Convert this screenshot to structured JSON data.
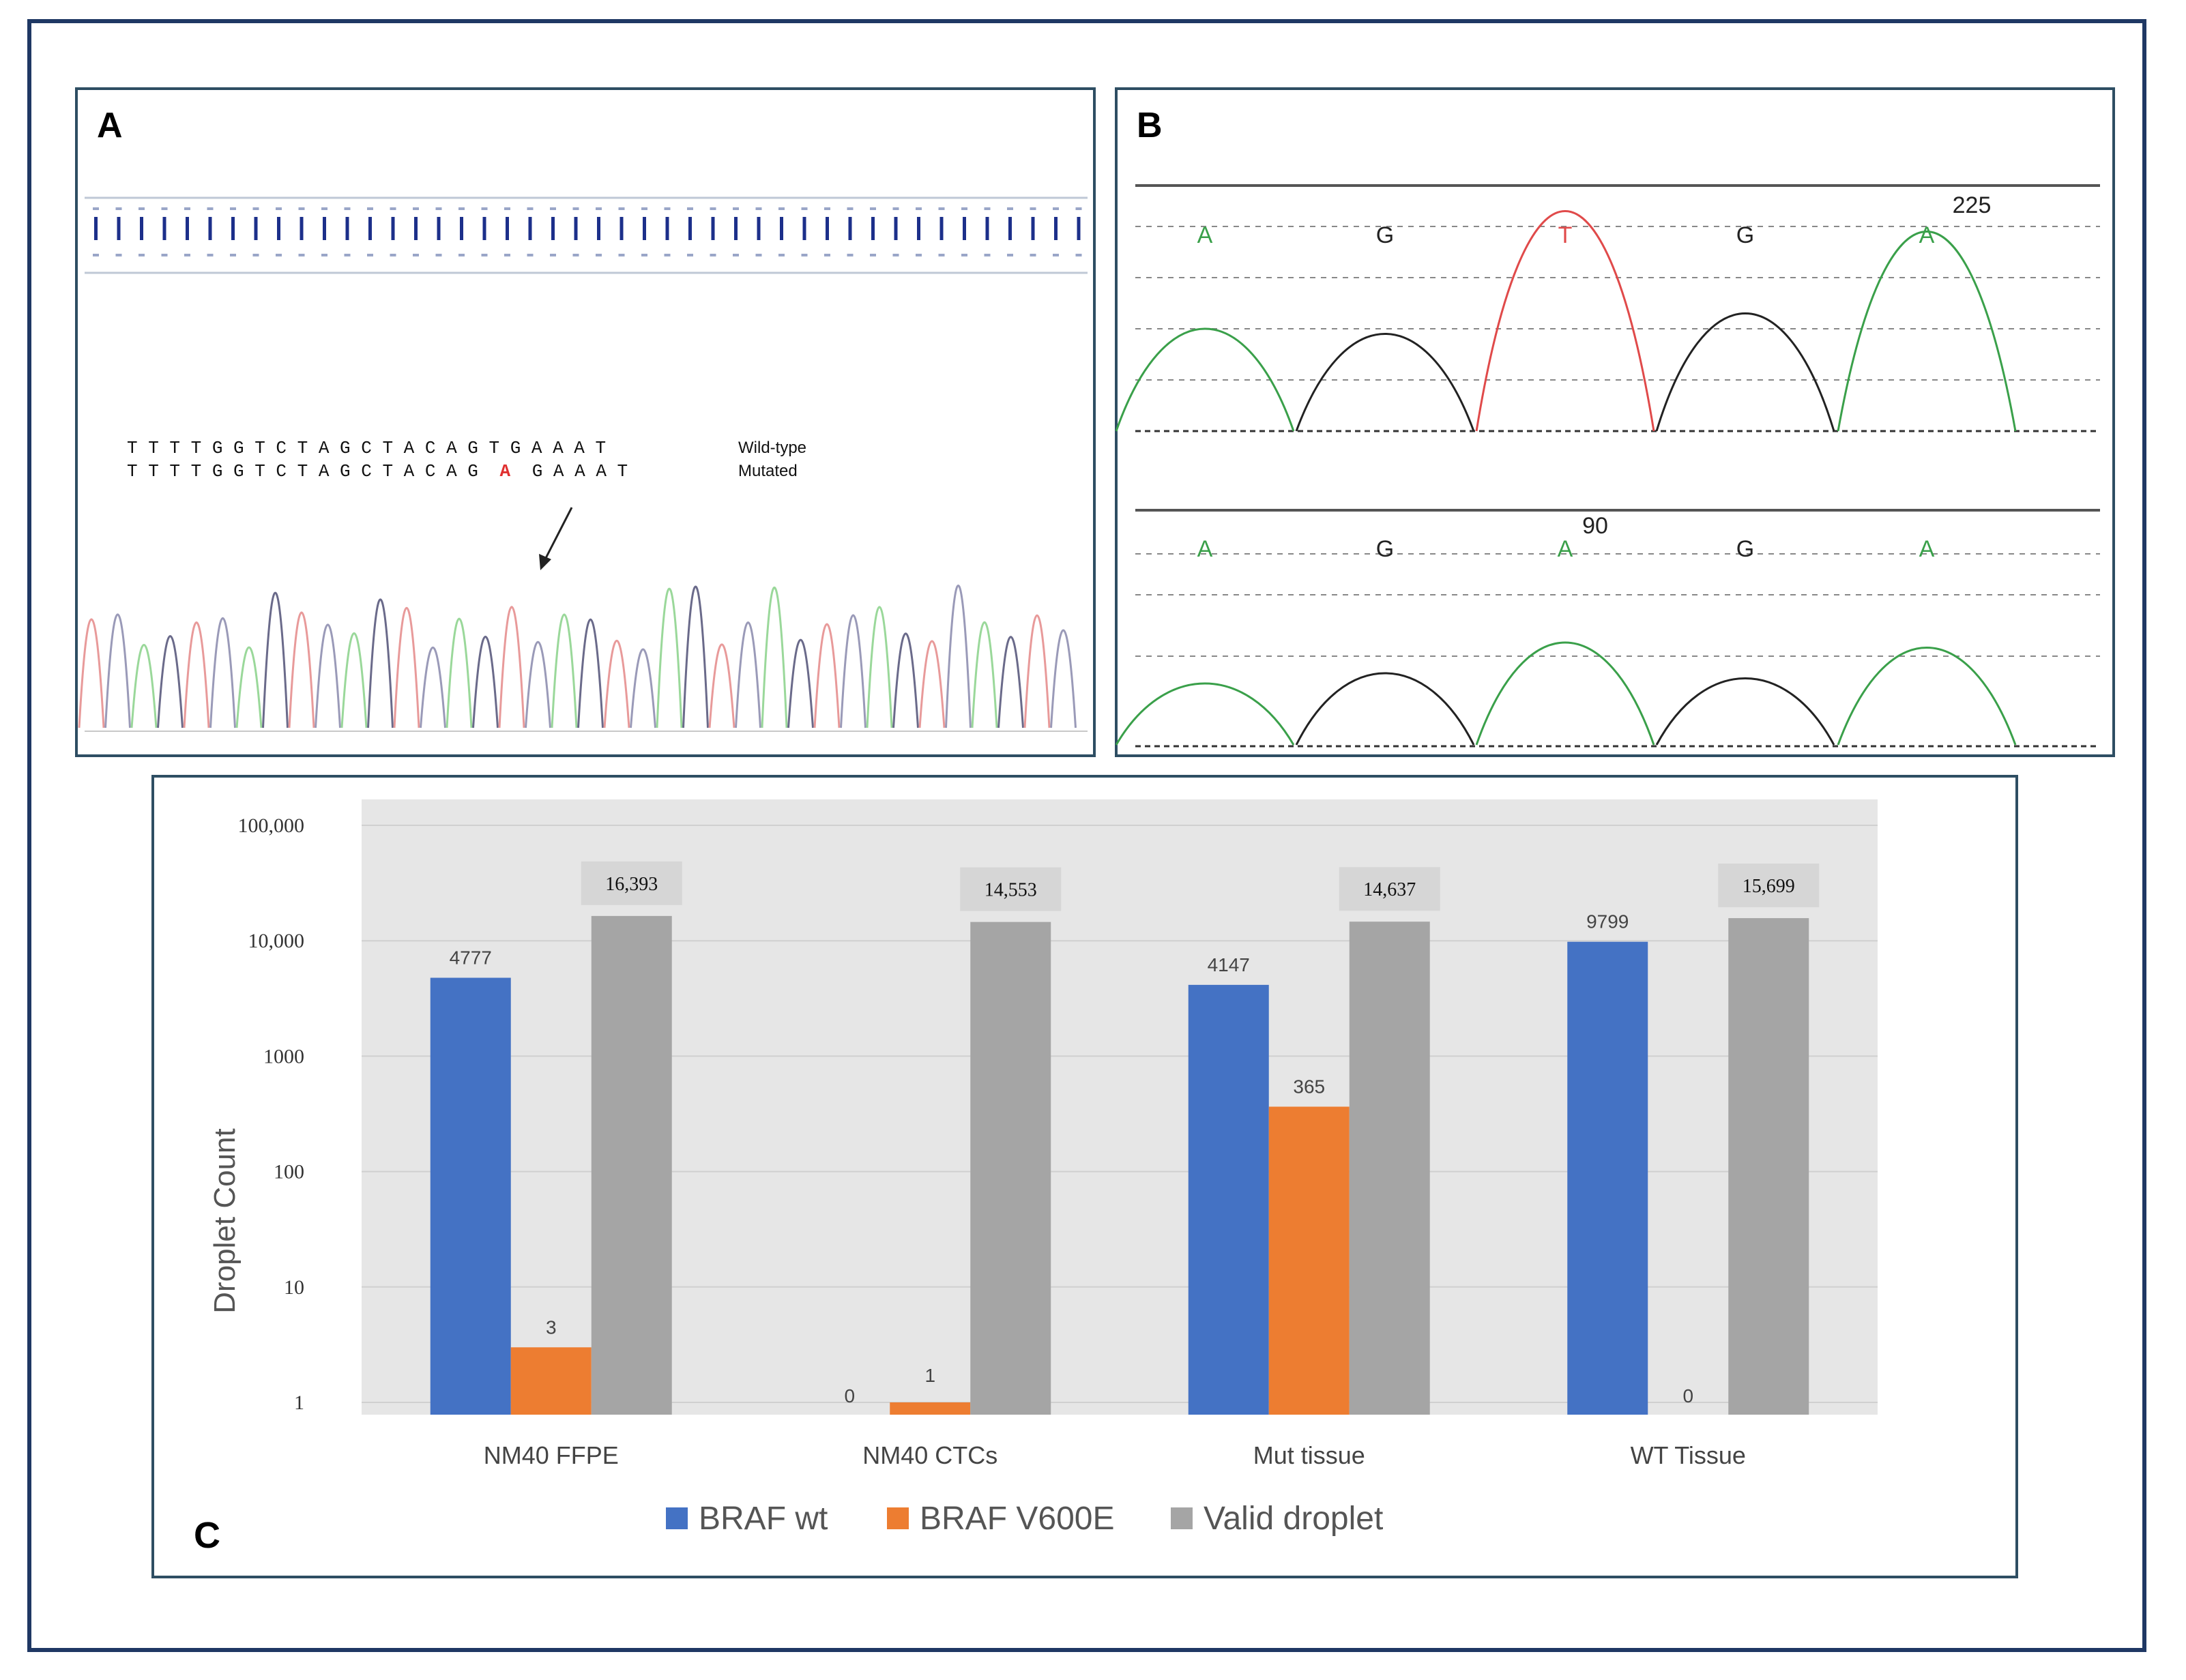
{
  "panels": {
    "a_letter": "A",
    "b_letter": "B",
    "c_letter": "C"
  },
  "panel_a": {
    "wild_type_seq": "T T T T G G T C T A G C T A C A G T G A A A T",
    "mutated_prefix": "T T T T G G T C T A G C T A C A G",
    "mutated_base": "A",
    "mutated_suffix": "G A A A T",
    "wild_type_label": "Wild-type",
    "mutated_label": "Mutated"
  },
  "panel_b": {
    "top_bases": [
      "A",
      "G",
      "T",
      "G",
      "A"
    ],
    "top_number": "225",
    "bottom_bases": [
      "A",
      "G",
      "A",
      "G",
      "A"
    ],
    "bottom_number": "90",
    "colors": {
      "A": "#3aa04a",
      "G": "#222222",
      "T": "#e04a4a"
    }
  },
  "chart_data": {
    "type": "bar",
    "scale": "log",
    "categories": [
      "NM40 FFPE",
      "NM40 CTCs",
      "Mut tissue",
      "WT Tissue"
    ],
    "series": [
      {
        "name": "BRAF wt",
        "color": "#4472c4",
        "values": [
          4777,
          0,
          4147,
          9799
        ],
        "labels": [
          "4777",
          "0",
          "4147",
          "9799"
        ]
      },
      {
        "name": "BRAF V600E",
        "color": "#ed7d31",
        "values": [
          3,
          1,
          365,
          0
        ],
        "labels": [
          "3",
          "1",
          "365",
          "0"
        ]
      },
      {
        "name": "Valid droplet",
        "color": "#a5a5a5",
        "values": [
          16393,
          14553,
          14637,
          15699
        ],
        "labels": [
          "16,393",
          "14,553",
          "14,637",
          "15,699"
        ]
      }
    ],
    "y_ticks": [
      "1",
      "10",
      "100",
      "1000",
      "10,000",
      "100,000"
    ],
    "ylabel": "Droplet Count",
    "ylim": [
      1,
      100000
    ],
    "legend_position": "bottom",
    "grid": true
  }
}
